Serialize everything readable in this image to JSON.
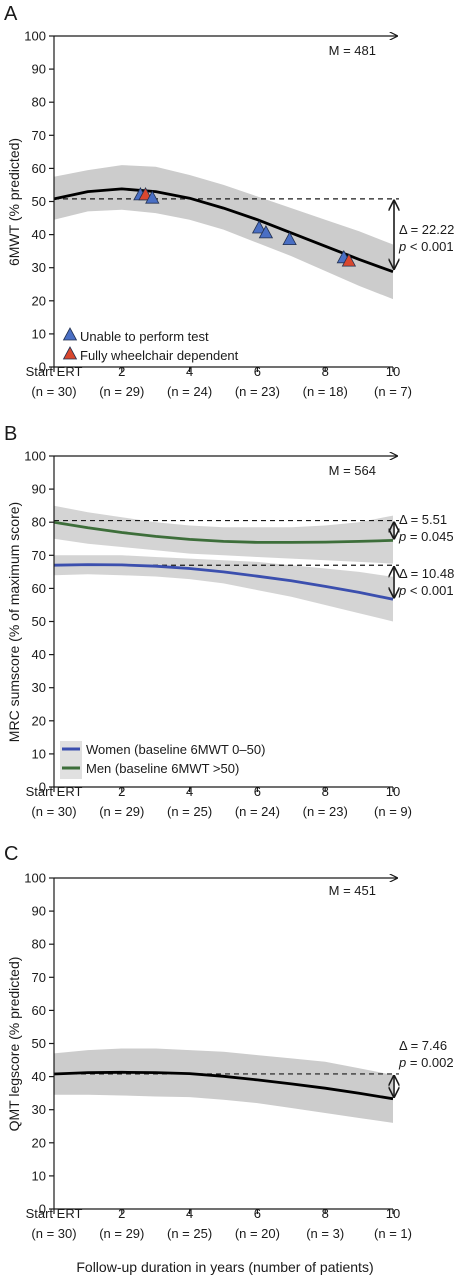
{
  "chart_data": [
    {
      "type": "line",
      "panel_label": "A",
      "ylabel": "6MWT (% predicted)",
      "ylim": [
        0,
        100
      ],
      "yticks": [
        0,
        10,
        20,
        30,
        40,
        50,
        60,
        70,
        80,
        90,
        100
      ],
      "xlim": [
        0,
        10
      ],
      "xticks": [
        {
          "x": 0,
          "label": "Start ERT",
          "n": "(n = 30)"
        },
        {
          "x": 2,
          "label": "2",
          "n": "(n = 29)"
        },
        {
          "x": 4,
          "label": "4",
          "n": "(n = 24)"
        },
        {
          "x": 6,
          "label": "6",
          "n": "(n = 23)"
        },
        {
          "x": 8,
          "label": "8",
          "n": "(n = 18)"
        },
        {
          "x": 10,
          "label": "10",
          "n": "(n = 7)"
        }
      ],
      "m_label": "M = 481",
      "series": [
        {
          "color": "#000000",
          "x": [
            0,
            1,
            2,
            3,
            4,
            5,
            6,
            7,
            8,
            9,
            10
          ],
          "y": [
            50.8,
            53.0,
            53.8,
            53.0,
            51.0,
            48.0,
            44.5,
            40.5,
            36.5,
            32.5,
            28.8
          ],
          "ci_upper": [
            57.5,
            59.5,
            61.0,
            60.5,
            58.0,
            55.0,
            51.5,
            48.0,
            44.5,
            41.0,
            37.0
          ],
          "ci_lower": [
            44.5,
            47.0,
            47.5,
            46.5,
            44.5,
            41.5,
            37.5,
            33.5,
            29.0,
            24.5,
            20.5
          ]
        }
      ],
      "baseline_y": 50.8,
      "annotations": [
        {
          "delta": "Δ = 22.22",
          "p_symbol": "p",
          "p_value": "< 0.001"
        }
      ],
      "markers": [
        {
          "x": 2.55,
          "y": 52,
          "group": "unable"
        },
        {
          "x": 2.7,
          "y": 52,
          "group": "wheelchair"
        },
        {
          "x": 2.9,
          "y": 51,
          "group": "unable"
        },
        {
          "x": 6.05,
          "y": 42,
          "group": "unable"
        },
        {
          "x": 6.25,
          "y": 40.5,
          "group": "unable"
        },
        {
          "x": 6.95,
          "y": 38.5,
          "group": "unable"
        },
        {
          "x": 8.55,
          "y": 33,
          "group": "unable"
        },
        {
          "x": 8.7,
          "y": 32,
          "group": "wheelchair"
        }
      ],
      "legend": [
        {
          "key": "unable",
          "label": "Unable to perform test",
          "color": "#4a6fc4"
        },
        {
          "key": "wheelchair",
          "label": "Fully wheelchair dependent",
          "color": "#d9472e"
        }
      ],
      "legend_position": "bottom-left"
    },
    {
      "type": "line",
      "panel_label": "B",
      "ylabel": "MRC sumscore (% of maximum score)",
      "ylim": [
        0,
        100
      ],
      "yticks": [
        0,
        10,
        20,
        30,
        40,
        50,
        60,
        70,
        80,
        90,
        100
      ],
      "xlim": [
        0,
        10
      ],
      "xticks": [
        {
          "x": 0,
          "label": "Start ERT",
          "n": "(n = 30)"
        },
        {
          "x": 2,
          "label": "2",
          "n": "(n = 29)"
        },
        {
          "x": 4,
          "label": "4",
          "n": "(n = 25)"
        },
        {
          "x": 6,
          "label": "6",
          "n": "(n = 24)"
        },
        {
          "x": 8,
          "label": "8",
          "n": "(n = 23)"
        },
        {
          "x": 10,
          "label": "10",
          "n": "(n = 9)"
        }
      ],
      "m_label": "M = 564",
      "series": [
        {
          "name": "Men (baseline 6MWT >50)",
          "color": "#3d6e3a",
          "x": [
            0,
            1,
            2,
            3,
            4,
            5,
            6,
            7,
            8,
            9,
            10
          ],
          "y": [
            80.0,
            78.3,
            76.9,
            75.7,
            74.8,
            74.2,
            73.9,
            73.9,
            74.0,
            74.2,
            74.5
          ],
          "ci_upper": [
            85.0,
            83.0,
            81.5,
            80.0,
            79.0,
            78.5,
            78.5,
            78.5,
            79.0,
            80.0,
            82.0
          ],
          "ci_lower": [
            75.0,
            73.5,
            72.5,
            71.5,
            70.5,
            70.0,
            69.5,
            69.0,
            68.5,
            68.0,
            67.5
          ]
        },
        {
          "name": "Women (baseline 6MWT 0–50)",
          "color": "#3b4fae",
          "x": [
            0,
            1,
            2,
            3,
            4,
            5,
            6,
            7,
            8,
            9,
            10
          ],
          "y": [
            67.0,
            67.2,
            67.1,
            66.7,
            66.0,
            65.0,
            63.7,
            62.3,
            60.6,
            58.8,
            56.7
          ],
          "ci_upper": [
            70.0,
            70.0,
            70.0,
            69.5,
            69.0,
            68.5,
            68.0,
            67.0,
            66.0,
            65.0,
            63.5
          ],
          "ci_lower": [
            64.0,
            64.3,
            64.0,
            63.6,
            62.8,
            61.5,
            59.5,
            57.5,
            55.0,
            52.5,
            50.0
          ]
        }
      ],
      "baseline_y": [
        80.5,
        67.0
      ],
      "annotations": [
        {
          "delta": "Δ = 5.51",
          "p_symbol": "p",
          "p_value": "= 0.045"
        },
        {
          "delta": "Δ = 10.48",
          "p_symbol": "p",
          "p_value": "< 0.001"
        }
      ],
      "legend": [
        {
          "label": "Women (baseline 6MWT 0–50)",
          "color": "#3b4fae"
        },
        {
          "label": "Men (baseline 6MWT >50)",
          "color": "#3d6e3a"
        }
      ],
      "legend_position": "bottom-left"
    },
    {
      "type": "line",
      "panel_label": "C",
      "ylabel": "QMT legscore (% predicted)",
      "xlabel": "Follow-up duration in years (number of patients)",
      "ylim": [
        0,
        100
      ],
      "yticks": [
        0,
        10,
        20,
        30,
        40,
        50,
        60,
        70,
        80,
        90,
        100
      ],
      "xlim": [
        0,
        10
      ],
      "xticks": [
        {
          "x": 0,
          "label": "Start ERT",
          "n": "(n = 30)"
        },
        {
          "x": 2,
          "label": "2",
          "n": "(n = 29)"
        },
        {
          "x": 4,
          "label": "4",
          "n": "(n = 25)"
        },
        {
          "x": 6,
          "label": "6",
          "n": "(n = 20)"
        },
        {
          "x": 8,
          "label": "8",
          "n": "(n = 3)"
        },
        {
          "x": 10,
          "label": "10",
          "n": "(n = 1)"
        }
      ],
      "m_label": "M = 451",
      "series": [
        {
          "color": "#000000",
          "x": [
            0,
            1,
            2,
            3,
            4,
            5,
            6,
            7,
            8,
            9,
            10
          ],
          "y": [
            40.8,
            41.2,
            41.3,
            41.2,
            40.9,
            40.1,
            39.0,
            37.8,
            36.5,
            35.0,
            33.3
          ],
          "ci_upper": [
            47.0,
            48.0,
            48.5,
            48.5,
            48.0,
            47.5,
            46.5,
            45.5,
            44.5,
            42.5,
            40.5
          ],
          "ci_lower": [
            34.5,
            34.5,
            34.3,
            34.0,
            33.8,
            33.0,
            32.0,
            30.5,
            29.0,
            27.5,
            26.0
          ]
        }
      ],
      "baseline_y": 40.8,
      "annotations": [
        {
          "delta": "Δ = 7.46",
          "p_symbol": "p",
          "p_value": "= 0.002"
        }
      ]
    }
  ],
  "colors": {
    "ci_band": "#cccccc",
    "axis": "#1a1a1a",
    "black_curve": "#000000"
  }
}
